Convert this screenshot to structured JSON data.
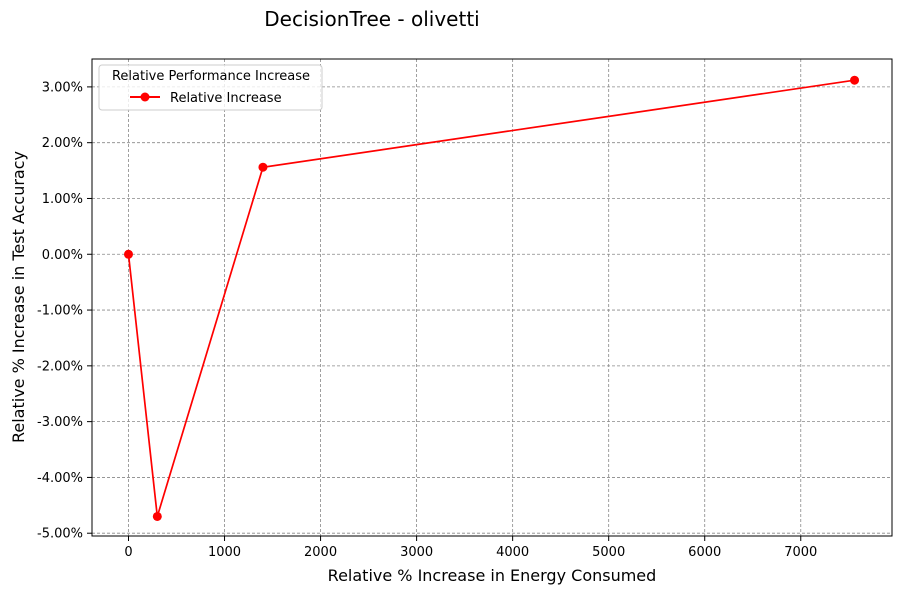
{
  "chart_data": {
    "type": "line",
    "title": "DecisionTree - olivetti",
    "xlabel": "Relative % Increase in Energy Consumed",
    "ylabel": "Relative % Increase in Test Accuracy",
    "xlim": [
      -380,
      7950
    ],
    "ylim": [
      -5.05,
      3.5
    ],
    "x_ticks": [
      0,
      1000,
      2000,
      3000,
      4000,
      5000,
      6000,
      7000
    ],
    "x_tick_labels": [
      "0",
      "1000",
      "2000",
      "3000",
      "4000",
      "5000",
      "6000",
      "7000"
    ],
    "y_ticks": [
      -5,
      -4,
      -3,
      -2,
      -1,
      0,
      1,
      2,
      3
    ],
    "y_tick_labels": [
      "-5.00%",
      "-4.00%",
      "-3.00%",
      "-2.00%",
      "-1.00%",
      "0.00%",
      "1.00%",
      "2.00%",
      "3.00%"
    ],
    "grid": true,
    "legend": {
      "title": "Relative Performance Increase",
      "placement": "top-left"
    },
    "series": [
      {
        "name": "Relative Increase",
        "color": "#ff0000",
        "marker": "circle",
        "x": [
          0,
          300,
          1400,
          7560
        ],
        "y": [
          0.0,
          -4.7,
          1.56,
          3.12
        ]
      }
    ]
  }
}
